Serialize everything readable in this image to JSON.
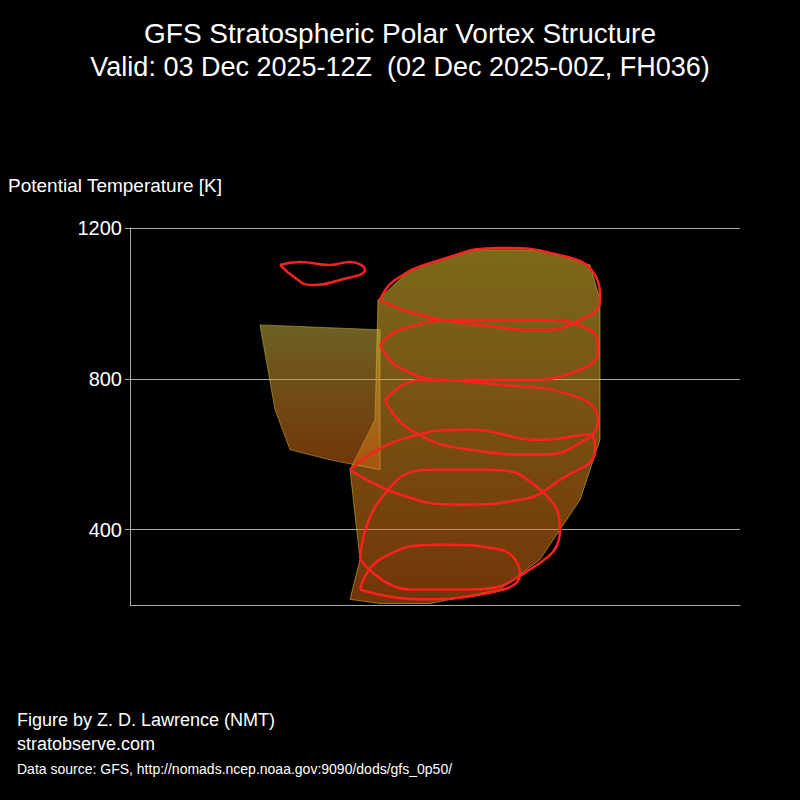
{
  "chart_data": {
    "type": "vortex_structure",
    "title": "GFS Stratospheric Polar Vortex Structure",
    "subtitle": "Valid: 03 Dec 2025-12Z  (02 Dec 2025-00Z, FH036)",
    "ylabel": "Potential Temperature [K]",
    "ylim": [
      200,
      1200
    ],
    "yticks": [
      400,
      800,
      1200
    ],
    "xlim": [
      130,
      740
    ],
    "tick_labels": "y",
    "grid": true,
    "columns": [
      {
        "color": "#e0c030",
        "x": [
          378,
          375,
          350,
          360,
          350,
          380,
          430,
          500,
          540,
          580,
          600,
          600,
          590,
          540,
          470,
          410,
          378
        ],
        "y": [
          1009,
          691,
          559,
          321,
          215,
          204,
          204,
          241,
          321,
          479,
          638,
          1009,
          1102,
          1142,
          1142,
          1089,
          1009
        ]
      },
      {
        "color": "#c8b040",
        "x": [
          260,
          380,
          380,
          330,
          290,
          275,
          260
        ],
        "y": [
          943,
          930,
          559,
          585,
          612,
          718,
          943
        ]
      }
    ],
    "contours": [
      {
        "color": "#ff2020",
        "x": [
          380,
          395,
          440,
          500,
          560,
          595,
          600,
          580,
          540,
          480,
          420,
          380
        ],
        "y": [
          1009,
          1062,
          1115,
          1147,
          1128,
          1075,
          1009,
          956,
          930,
          943,
          970,
          1009
        ]
      },
      {
        "color": "#ff2020",
        "x": [
          380,
          400,
          460,
          540,
          590,
          598,
          580,
          520,
          450,
          400,
          380
        ],
        "y": [
          890,
          930,
          956,
          956,
          930,
          877,
          824,
          797,
          797,
          829,
          890
        ]
      },
      {
        "color": "#ff2020",
        "x": [
          385,
          420,
          500,
          570,
          598,
          585,
          540,
          470,
          410,
          385
        ],
        "y": [
          744,
          797,
          784,
          758,
          691,
          638,
          599,
          612,
          665,
          744
        ]
      },
      {
        "color": "#ff2020",
        "x": [
          350,
          400,
          470,
          540,
          590,
          595,
          560,
          520,
          460,
          400,
          350
        ],
        "y": [
          559,
          638,
          665,
          638,
          652,
          612,
          532,
          479,
          466,
          493,
          559
        ]
      },
      {
        "color": "#ff2020",
        "x": [
          360,
          380,
          430,
          490,
          540,
          560,
          530,
          470,
          410,
          360
        ],
        "y": [
          321,
          479,
          559,
          559,
          506,
          400,
          294,
          241,
          241,
          321
        ]
      },
      {
        "color": "#ff2020",
        "x": [
          360,
          380,
          440,
          500,
          520,
          480,
          420,
          360
        ],
        "y": [
          241,
          321,
          360,
          347,
          281,
          228,
          215,
          241
        ]
      },
      {
        "color": "#ff2020",
        "x": [
          280,
          300,
          330,
          350,
          365,
          340,
          310,
          295,
          280
        ],
        "y": [
          1102,
          1110,
          1102,
          1110,
          1089,
          1062,
          1049,
          1068,
          1102
        ]
      }
    ],
    "credits": [
      "Figure by Z. D. Lawrence (NMT)",
      "stratobserve.com",
      "Data source: GFS, http://nomads.ncep.noaa.gov:9090/dods/gfs_0p50/"
    ]
  }
}
